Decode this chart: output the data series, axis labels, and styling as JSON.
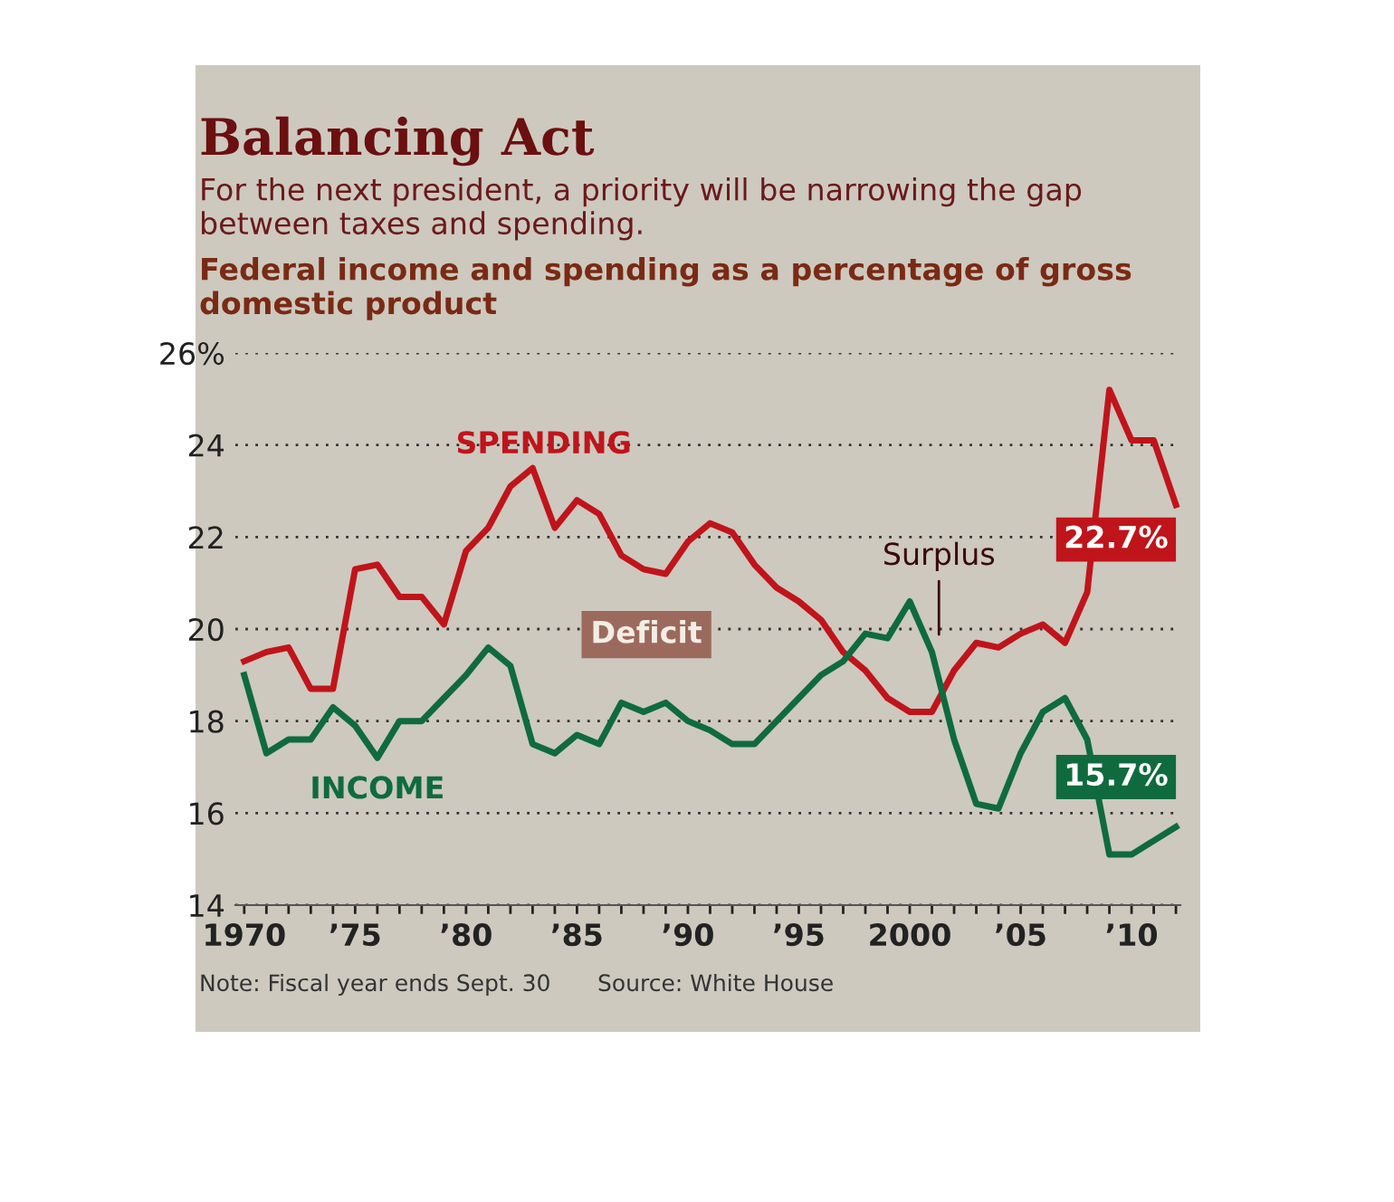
{
  "chart_data": {
    "type": "line",
    "title": "Balancing Act",
    "subtitle": "For the next president, a priority will be narrowing the gap between taxes and spending.",
    "ylabel": "Federal income and spending as a percentage of gross domestic product",
    "x": [
      1970,
      1971,
      1972,
      1973,
      1974,
      1975,
      1976,
      1977,
      1978,
      1979,
      1980,
      1981,
      1982,
      1983,
      1984,
      1985,
      1986,
      1987,
      1988,
      1989,
      1990,
      1991,
      1992,
      1993,
      1994,
      1995,
      1996,
      1997,
      1998,
      1999,
      2000,
      2001,
      2002,
      2003,
      2004,
      2005,
      2006,
      2007,
      2008,
      2009,
      2010,
      2011,
      2012
    ],
    "series": [
      {
        "name": "SPENDING",
        "color": "#c0141b",
        "values": [
          19.3,
          19.5,
          19.6,
          18.7,
          18.7,
          21.3,
          21.4,
          20.7,
          20.7,
          20.1,
          21.7,
          22.2,
          23.1,
          23.5,
          22.2,
          22.8,
          22.5,
          21.6,
          21.3,
          21.2,
          21.9,
          22.3,
          22.1,
          21.4,
          20.9,
          20.6,
          20.2,
          19.5,
          19.1,
          18.5,
          18.2,
          18.2,
          19.1,
          19.7,
          19.6,
          19.9,
          20.1,
          19.7,
          20.8,
          25.2,
          24.1,
          24.1,
          22.7
        ],
        "value_labels": [
          null,
          null,
          null,
          null,
          null,
          null,
          null,
          null,
          null,
          null,
          null,
          null,
          null,
          null,
          null,
          null,
          null,
          null,
          null,
          null,
          null,
          null,
          null,
          null,
          null,
          null,
          null,
          null,
          null,
          null,
          null,
          null,
          null,
          null,
          null,
          null,
          null,
          null,
          null,
          null,
          null,
          null,
          "22.7%"
        ]
      },
      {
        "name": "INCOME",
        "color": "#0f6b3e",
        "values": [
          19.0,
          17.3,
          17.6,
          17.6,
          18.3,
          17.9,
          17.2,
          18.0,
          18.0,
          18.5,
          19.0,
          19.6,
          19.2,
          17.5,
          17.3,
          17.7,
          17.5,
          18.4,
          18.2,
          18.4,
          18.0,
          17.8,
          17.5,
          17.5,
          18.0,
          18.5,
          19.0,
          19.3,
          19.9,
          19.8,
          20.6,
          19.5,
          17.6,
          16.2,
          16.1,
          17.3,
          18.2,
          18.5,
          17.6,
          15.1,
          15.1,
          15.4,
          15.7
        ],
        "value_labels": [
          null,
          null,
          null,
          null,
          null,
          null,
          null,
          null,
          null,
          null,
          null,
          null,
          null,
          null,
          null,
          null,
          null,
          null,
          null,
          null,
          null,
          null,
          null,
          null,
          null,
          null,
          null,
          null,
          null,
          null,
          null,
          null,
          null,
          null,
          null,
          null,
          null,
          null,
          null,
          null,
          null,
          null,
          "15.7%"
        ]
      }
    ],
    "xlim": [
      1969.6,
      2012.2
    ],
    "xticks": [
      {
        "value": 1970,
        "label": "1970"
      },
      {
        "value": 1971,
        "label": null
      },
      {
        "value": 1972,
        "label": null
      },
      {
        "value": 1973,
        "label": null
      },
      {
        "value": 1974,
        "label": null
      },
      {
        "value": 1975,
        "label": "’75"
      },
      {
        "value": 1976,
        "label": null
      },
      {
        "value": 1977,
        "label": null
      },
      {
        "value": 1978,
        "label": null
      },
      {
        "value": 1979,
        "label": null
      },
      {
        "value": 1980,
        "label": "’80"
      },
      {
        "value": 1981,
        "label": null
      },
      {
        "value": 1982,
        "label": null
      },
      {
        "value": 1983,
        "label": null
      },
      {
        "value": 1984,
        "label": null
      },
      {
        "value": 1985,
        "label": "’85"
      },
      {
        "value": 1986,
        "label": null
      },
      {
        "value": 1987,
        "label": null
      },
      {
        "value": 1988,
        "label": null
      },
      {
        "value": 1989,
        "label": null
      },
      {
        "value": 1990,
        "label": "’90"
      },
      {
        "value": 1991,
        "label": null
      },
      {
        "value": 1992,
        "label": null
      },
      {
        "value": 1993,
        "label": null
      },
      {
        "value": 1994,
        "label": null
      },
      {
        "value": 1995,
        "label": "’95"
      },
      {
        "value": 1996,
        "label": null
      },
      {
        "value": 1997,
        "label": null
      },
      {
        "value": 1998,
        "label": null
      },
      {
        "value": 1999,
        "label": null
      },
      {
        "value": 2000,
        "label": "2000"
      },
      {
        "value": 2001,
        "label": null
      },
      {
        "value": 2002,
        "label": null
      },
      {
        "value": 2003,
        "label": null
      },
      {
        "value": 2004,
        "label": null
      },
      {
        "value": 2005,
        "label": "’05"
      },
      {
        "value": 2006,
        "label": null
      },
      {
        "value": 2007,
        "label": null
      },
      {
        "value": 2008,
        "label": null
      },
      {
        "value": 2009,
        "label": null
      },
      {
        "value": 2010,
        "label": "’10"
      },
      {
        "value": 2011,
        "label": null
      },
      {
        "value": 2012,
        "label": null
      }
    ],
    "ylim": [
      14,
      26
    ],
    "yticks": [
      14,
      16,
      18,
      20,
      22,
      24,
      {
        "value": 26,
        "label": "26%"
      }
    ],
    "grid": "y",
    "legend": false,
    "marker": "none",
    "line_style": "solid",
    "annotations": [
      "Deficit",
      "Surplus",
      "Note: Fiscal year ends Sept. 30",
      "Source: White House"
    ]
  }
}
